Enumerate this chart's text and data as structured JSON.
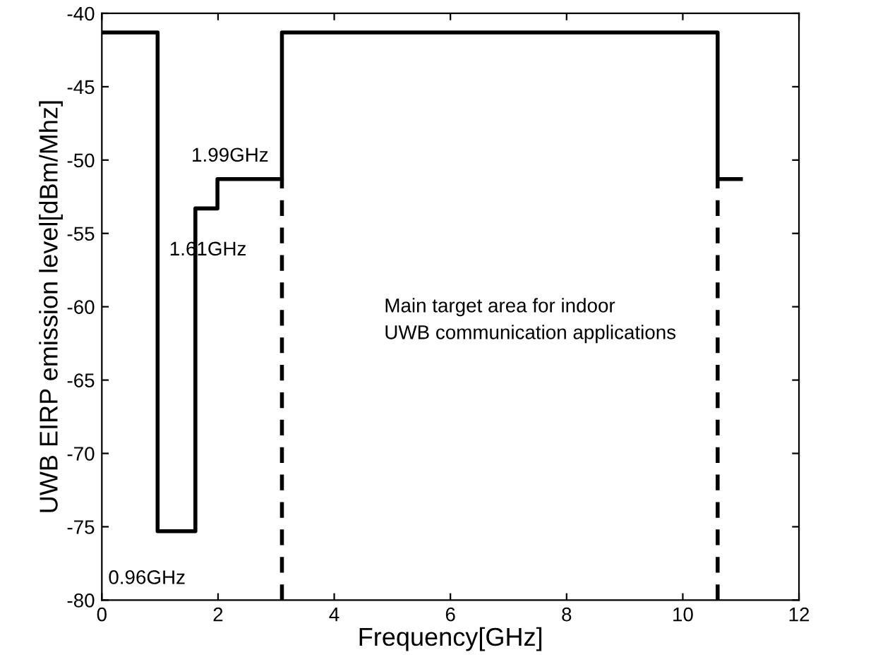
{
  "chart_data": {
    "type": "line",
    "xlabel": "Frequency[GHz]",
    "ylabel": "UWB EIRP emission level[dBm/Mhz]",
    "xlim": [
      0,
      12
    ],
    "ylim": [
      -80,
      -40
    ],
    "xticks": [
      0,
      2,
      4,
      6,
      8,
      10,
      12
    ],
    "yticks": [
      -80,
      -75,
      -70,
      -65,
      -60,
      -55,
      -50,
      -45,
      -40
    ],
    "grid": false,
    "legend": false,
    "series": [
      {
        "color": "#000000",
        "line_style": "solid",
        "x": [
          0,
          0.96,
          0.96,
          1.61,
          1.61,
          1.99,
          1.99,
          3.1,
          3.1,
          10.6,
          10.6,
          11
        ],
        "values": [
          -41.3,
          -41.3,
          -75.3,
          -75.3,
          -53.3,
          -53.3,
          -51.3,
          -51.3,
          -41.3,
          -41.3,
          -51.3,
          -51.3
        ]
      },
      {
        "color": "#000000",
        "line_style": "dashed",
        "x": [
          3.1,
          3.1
        ],
        "values": [
          -80,
          -51.3
        ]
      },
      {
        "color": "#000000",
        "line_style": "dashed",
        "x": [
          10.6,
          10.6
        ],
        "values": [
          -80,
          -51.3
        ]
      }
    ],
    "annotations": [
      {
        "text": "1.99GHz",
        "x": 1.99,
        "y": -51.3
      },
      {
        "text": "1.61GHz",
        "x": 1.61,
        "y": -53.3
      },
      {
        "text": "0.96GHz",
        "x": 0.96,
        "y": -75.3
      },
      "Main target area for indoor\nUWB communication applications"
    ]
  }
}
